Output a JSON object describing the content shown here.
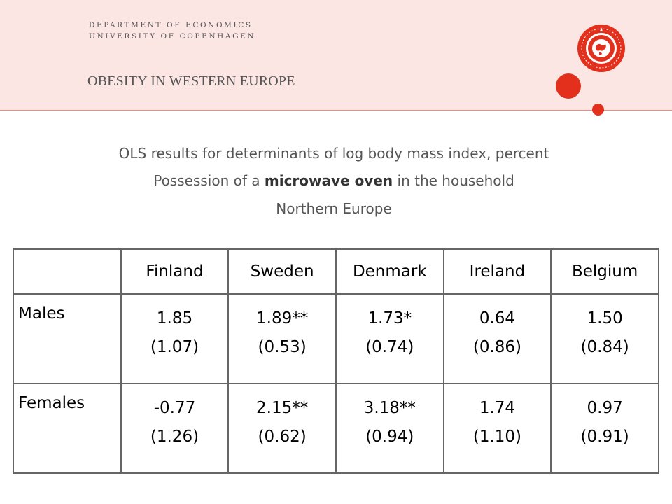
{
  "header": {
    "department": "DEPARTMENT OF ECONOMICS",
    "university": "UNIVERSITY OF COPENHAGEN",
    "slide_title": "OBESITY IN WESTERN EUROPE",
    "seal_text": "SOCIALIS · SIGILLVM · FACVLTATIS · RERVM",
    "brand_color": "#e2301d"
  },
  "subtitle": {
    "line1": "OLS results for determinants of log body mass index, percent",
    "line2_prefix": "Possession of a ",
    "line2_bold": "microwave oven",
    "line2_suffix": " in the household",
    "line3": "Northern Europe"
  },
  "table": {
    "columns": [
      "",
      "Finland",
      "Sweden",
      "Denmark",
      "Ireland",
      "Belgium"
    ],
    "rows": [
      {
        "label": "Males",
        "cells": [
          {
            "coef": "1.85",
            "se": "(1.07)"
          },
          {
            "coef": "1.89**",
            "se": "(0.53)"
          },
          {
            "coef": "1.73*",
            "se": "(0.74)"
          },
          {
            "coef": "0.64",
            "se": "(0.86)"
          },
          {
            "coef": "1.50",
            "se": "(0.84)"
          }
        ]
      },
      {
        "label": "Females",
        "cells": [
          {
            "coef": "-0.77",
            "se": "(1.26)"
          },
          {
            "coef": "2.15**",
            "se": "(0.62)"
          },
          {
            "coef": "3.18**",
            "se": "(0.94)"
          },
          {
            "coef": "1.74",
            "se": "(1.10)"
          },
          {
            "coef": "0.97",
            "se": "(0.91)"
          }
        ]
      }
    ]
  }
}
